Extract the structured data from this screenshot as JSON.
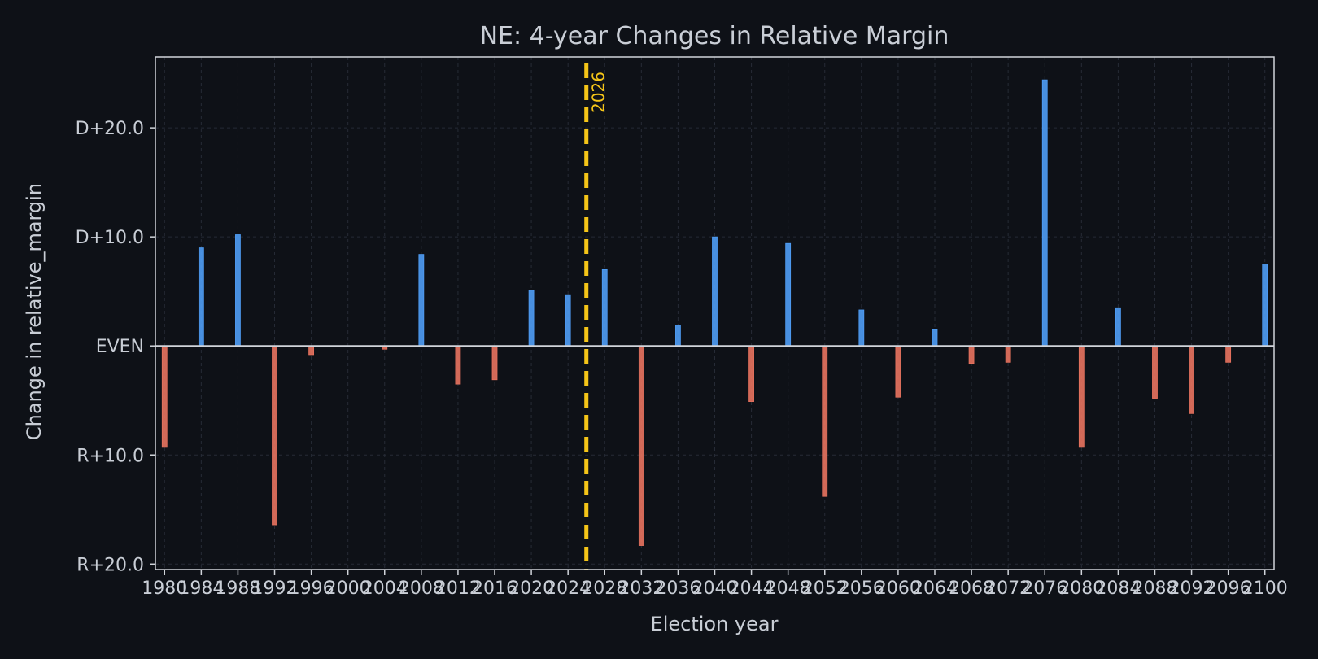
{
  "chart_data": {
    "type": "bar",
    "title": "NE: 4-year Changes in Relative Margin",
    "xlabel": "Election year",
    "ylabel": "Change in relative_margin",
    "x": [
      1980,
      1984,
      1988,
      1992,
      1996,
      2000,
      2004,
      2008,
      2012,
      2016,
      2020,
      2024,
      2028,
      2032,
      2036,
      2040,
      2044,
      2048,
      2052,
      2056,
      2060,
      2064,
      2068,
      2072,
      2076,
      2080,
      2084,
      2088,
      2092,
      2096,
      2100
    ],
    "x_tick_labels": [
      "1980",
      "1984",
      "1988",
      "1992",
      "1996",
      "2000",
      "2004",
      "2008",
      "2012",
      "2016",
      "2020",
      "2024",
      "2028",
      "2032",
      "2036",
      "2040",
      "2044",
      "2048",
      "2052",
      "2056",
      "2060",
      "2064",
      "2068",
      "2072",
      "2076",
      "2080",
      "2084",
      "2088",
      "2092",
      "2096",
      "2100"
    ],
    "values": [
      -9.3,
      9.0,
      10.2,
      -16.4,
      -0.8,
      0.0,
      -0.3,
      8.4,
      -3.5,
      -3.1,
      5.1,
      4.7,
      7.0,
      -18.3,
      1.9,
      10.0,
      -5.1,
      9.4,
      -13.8,
      3.3,
      -4.7,
      1.5,
      -1.6,
      -1.5,
      24.4,
      -9.3,
      3.5,
      -4.8,
      -6.2,
      -1.5,
      7.5
    ],
    "xlim": [
      1979,
      2101
    ],
    "ylim": [
      -20.5,
      26.5
    ],
    "y_ticks": [
      {
        "value": 20,
        "label": "D+20.0"
      },
      {
        "value": 10,
        "label": "D+10.0"
      },
      {
        "value": 0,
        "label": "EVEN"
      },
      {
        "value": -10,
        "label": "R+10.0"
      },
      {
        "value": -20,
        "label": "R+20.0"
      }
    ],
    "marker": {
      "x": 2026,
      "label": "2026"
    },
    "grid": true,
    "colors": {
      "background": "#0e1117",
      "positive": "#4f9df5",
      "negative": "#e8735f",
      "marker": "#f5c518",
      "text": "#c9ced6",
      "frame": "#d0d4da",
      "grid": "#262b36"
    }
  }
}
